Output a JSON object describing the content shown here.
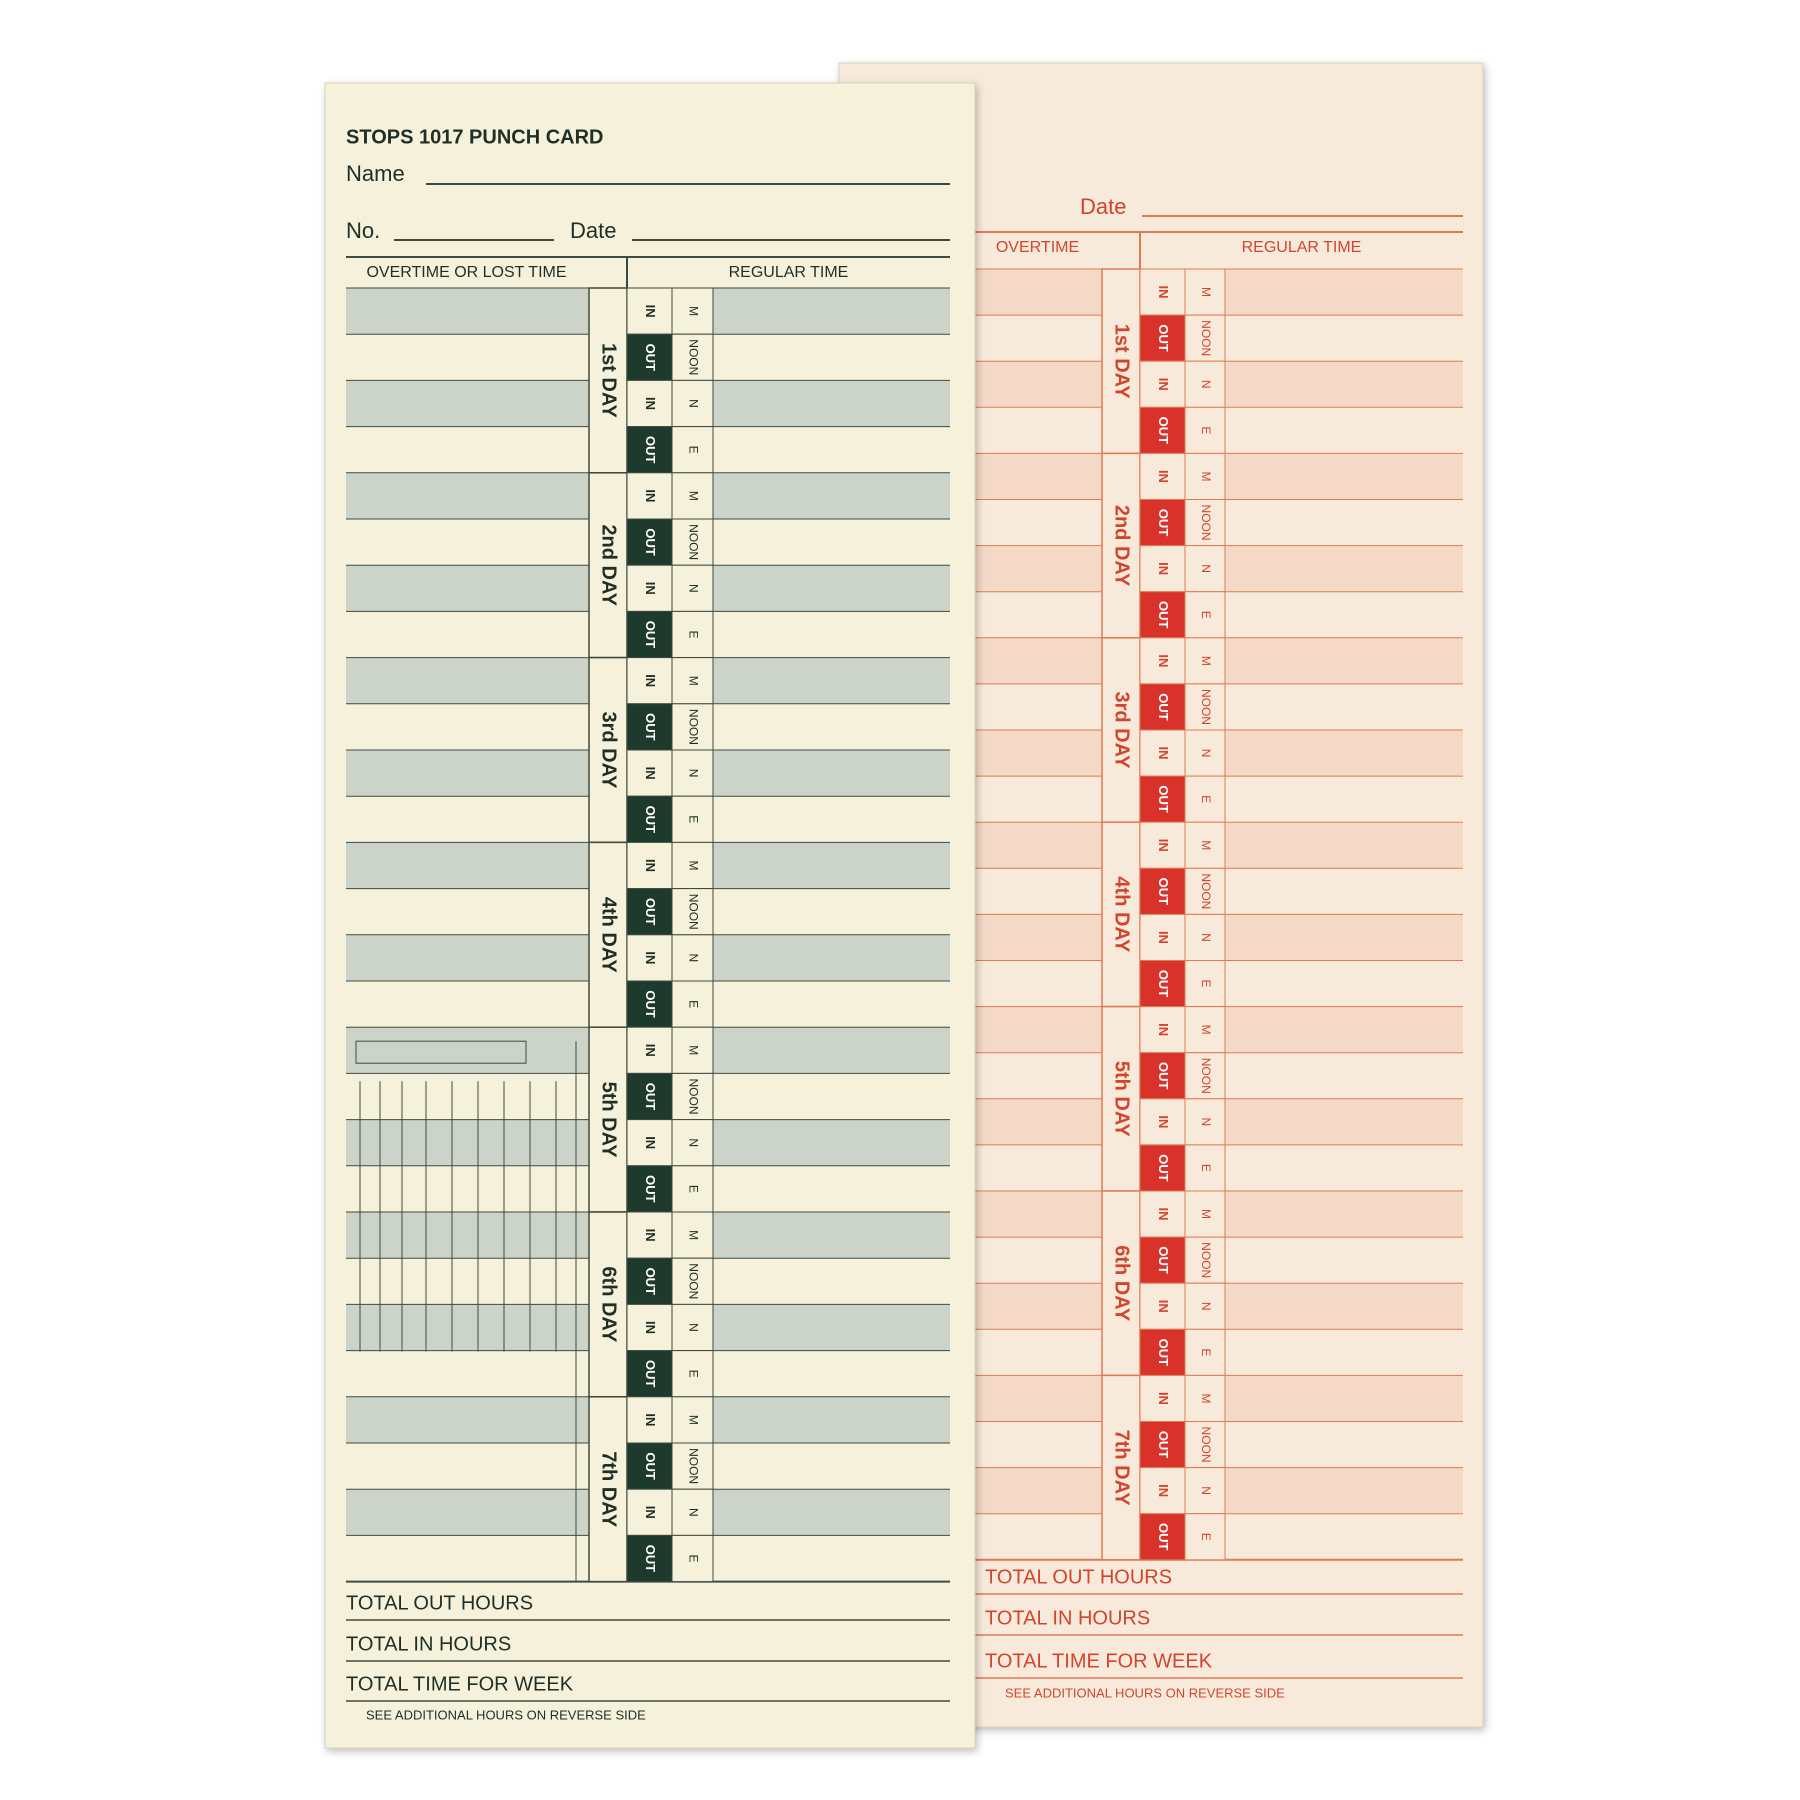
{
  "cards": [
    {
      "title": "STOPS 1017 PUNCH CARD",
      "name_label": "Name",
      "no_label": "No.",
      "date_label": "Date",
      "left_heading": "OVERTIME OR LOST TIME",
      "right_heading": "REGULAR TIME",
      "days": [
        "1st DAY",
        "2nd DAY",
        "3rd DAY",
        "4th DAY",
        "5th DAY",
        "6th DAY",
        "7th DAY"
      ],
      "slot_labels": [
        "IN",
        "OUT",
        "IN",
        "OUT"
      ],
      "side_labels": [
        "M",
        "NOON",
        "N",
        "E"
      ],
      "totals": [
        "TOTAL OUT HOURS",
        "TOTAL IN HOURS",
        "TOTAL TIME FOR WEEK"
      ],
      "footer": "SEE ADDITIONAL HOURS ON REVERSE SIDE"
    },
    {
      "date_label": "Date",
      "left_heading": "OVERTIME",
      "right_heading": "REGULAR TIME",
      "days": [
        "1st DAY",
        "2nd DAY",
        "3rd DAY",
        "4th DAY",
        "5th DAY",
        "6th DAY",
        "7th DAY"
      ],
      "slot_labels": [
        "IN",
        "OUT",
        "IN",
        "OUT"
      ],
      "side_labels": [
        "M",
        "NOON",
        "N",
        "E"
      ],
      "totals": [
        "TOTAL OUT HOURS",
        "TOTAL IN HOURS",
        "TOTAL TIME FOR WEEK"
      ],
      "footer": "SEE ADDITIONAL HOURS ON REVERSE SIDE"
    }
  ]
}
